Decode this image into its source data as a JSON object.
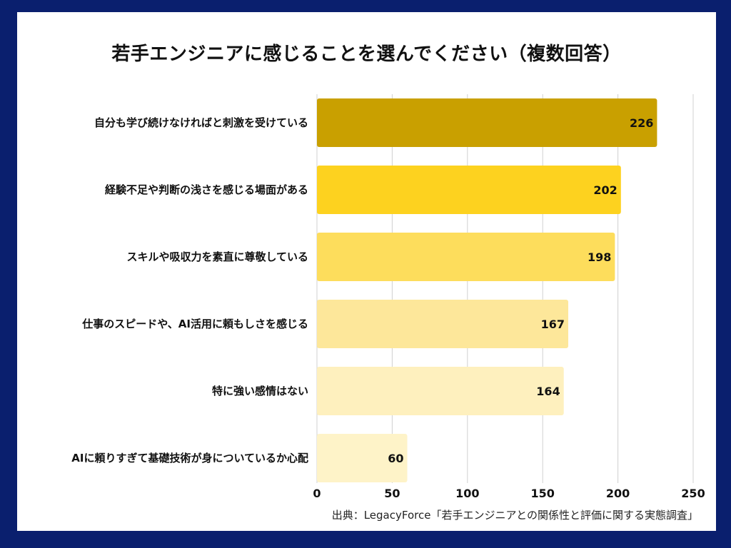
{
  "chart_data": {
    "type": "bar",
    "orientation": "horizontal",
    "title": "若手エンジニアに感じることを選んでください（複数回答）",
    "categories": [
      "自分も学び続けなければと刺激を受けている",
      "経験不足や判断の浅さを感じる場面がある",
      "スキルや吸収力を素直に尊敬している",
      "仕事のスピードや、AI活用に頼もしさを感じる",
      "特に強い感情はない",
      "AIに頼りすぎて基礎技術が身についているか心配"
    ],
    "values": [
      226,
      202,
      198,
      167,
      164,
      60
    ],
    "bar_colors": [
      "#c9a000",
      "#fdd21f",
      "#fddd5c",
      "#fde79a",
      "#fef0be",
      "#fef3c8"
    ],
    "xlim": [
      0,
      250
    ],
    "xticks": [
      0,
      50,
      100,
      150,
      200,
      250
    ],
    "grid": true,
    "xlabel": "",
    "ylabel": "",
    "source": "出典：LegacyForce「若手エンジニアとの関係性と評価に関する実態調査」"
  },
  "colors": {
    "border": "#0a1f6e",
    "background": "#ffffff",
    "grid": "#d0d0d0"
  }
}
